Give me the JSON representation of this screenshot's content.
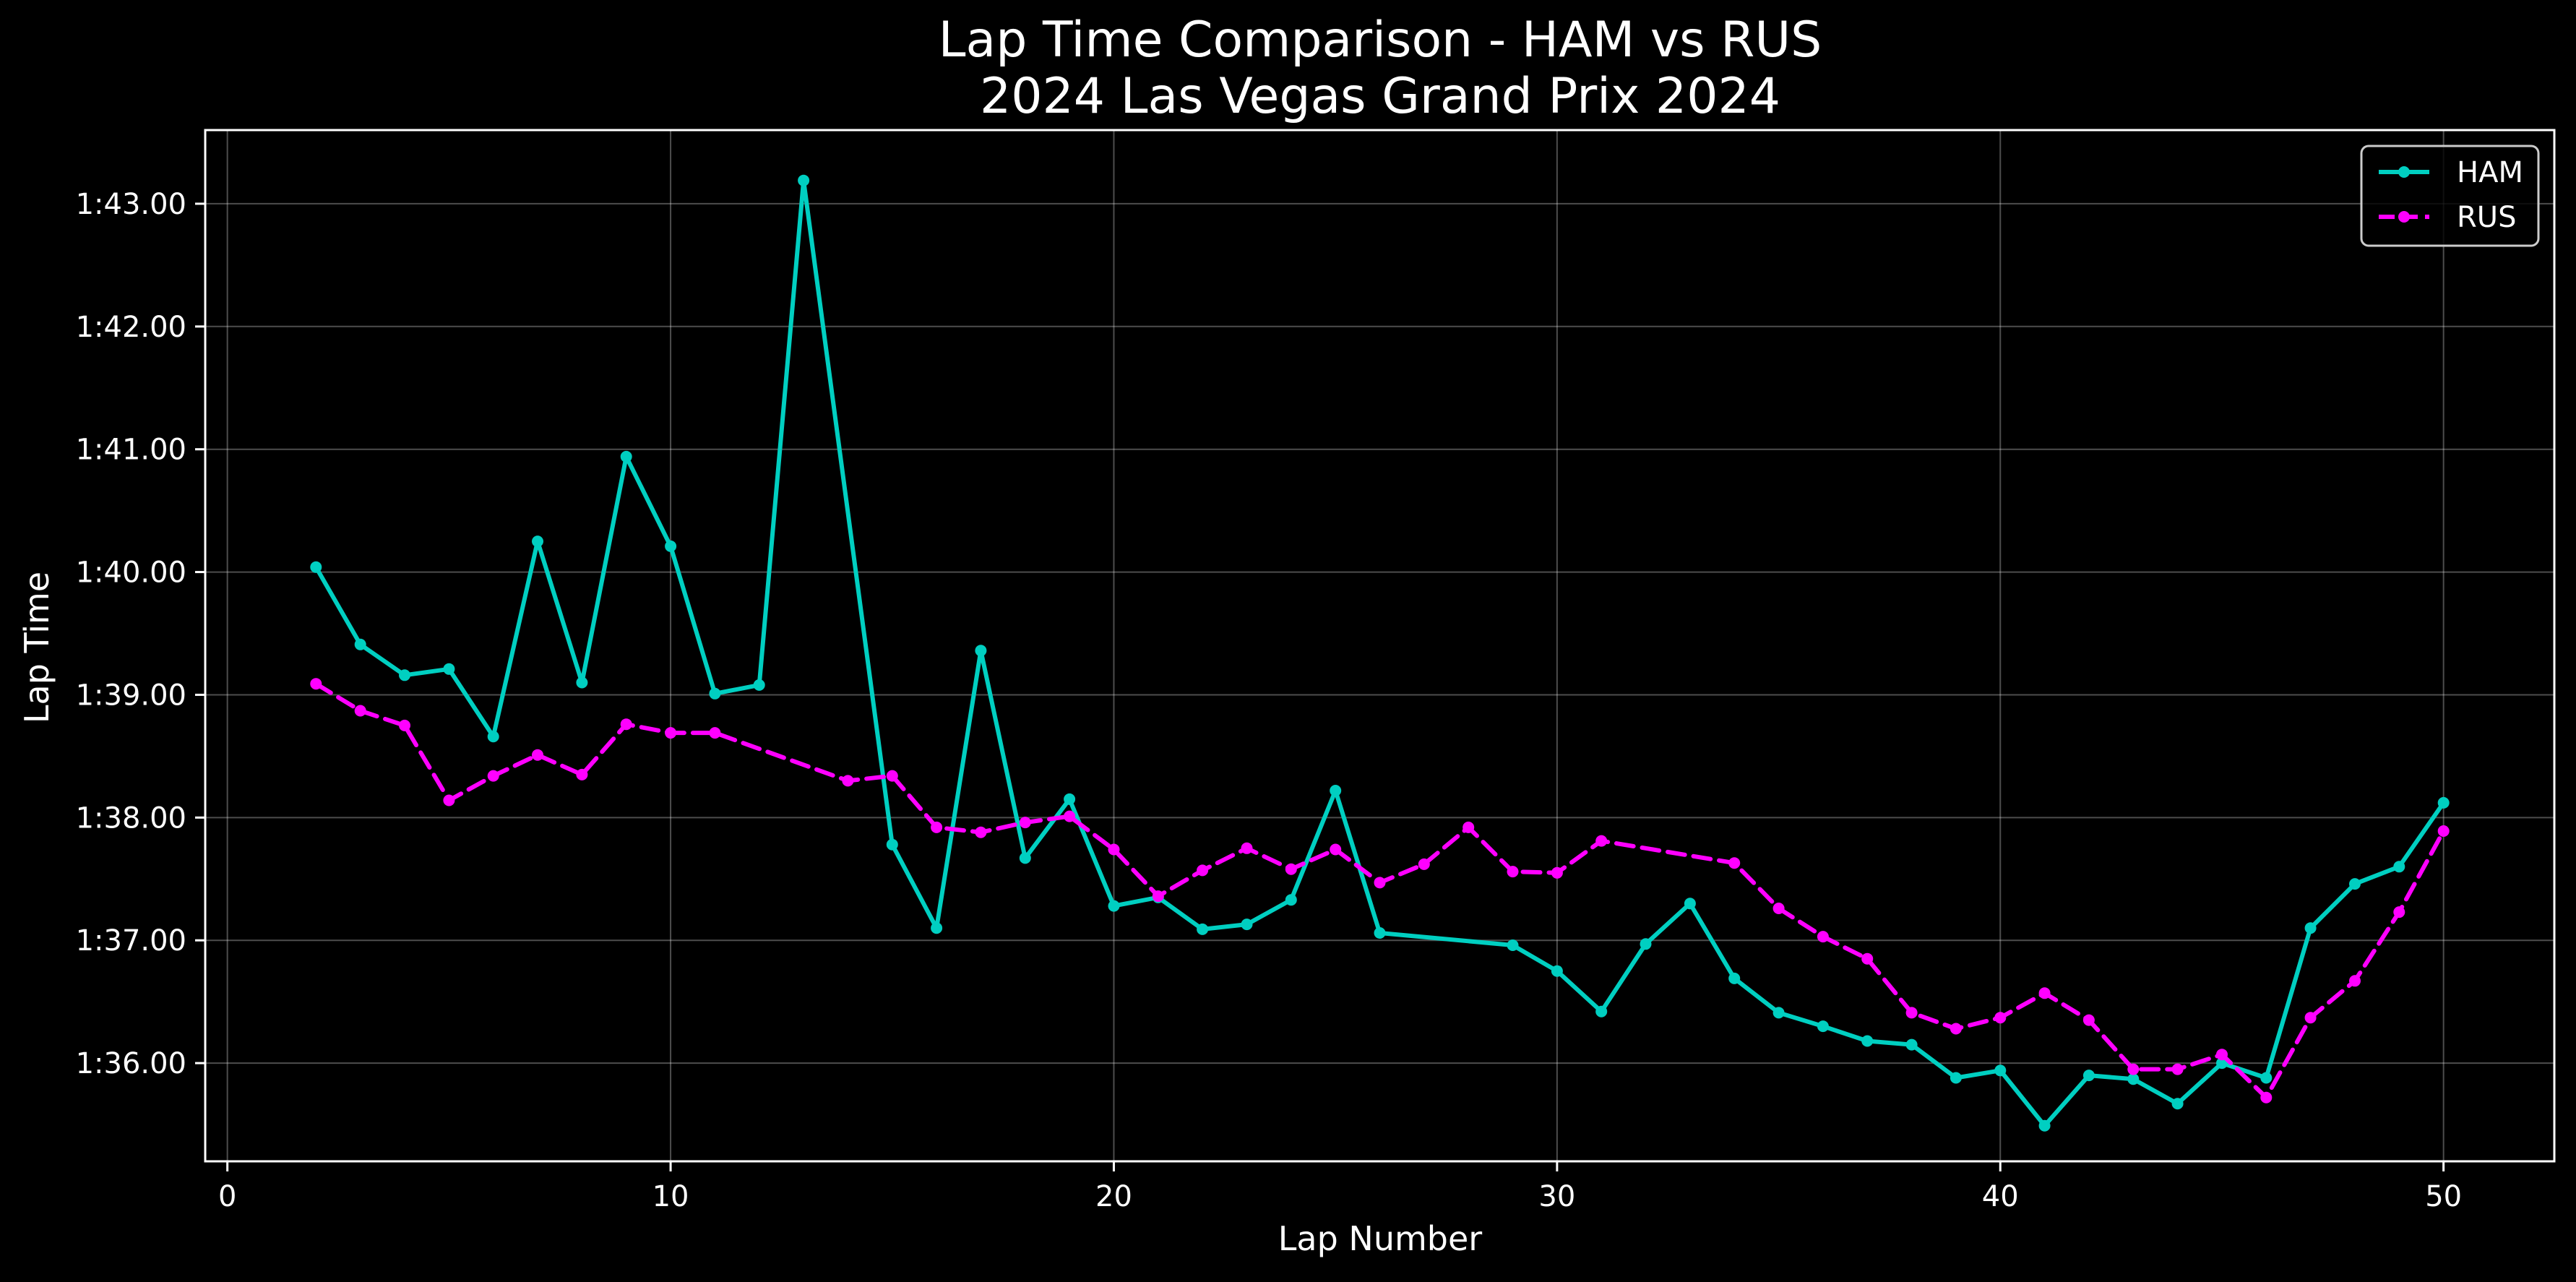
{
  "chart_data": {
    "type": "line",
    "title": "Lap Time Comparison - HAM vs RUS",
    "subtitle": "2024 Las Vegas Grand Prix 2024",
    "xlabel": "Lap Number",
    "ylabel": "Lap Time",
    "xlim": [
      -0.5,
      52.5
    ],
    "ylim": [
      95.2,
      103.6
    ],
    "x_ticks": [
      0,
      10,
      20,
      30,
      40,
      50
    ],
    "y_ticks": [
      {
        "value": 96,
        "label": "1:36.00"
      },
      {
        "value": 97,
        "label": "1:37.00"
      },
      {
        "value": 98,
        "label": "1:38.00"
      },
      {
        "value": 99,
        "label": "1:39.00"
      },
      {
        "value": 100,
        "label": "1:40.00"
      },
      {
        "value": 101,
        "label": "1:41.00"
      },
      {
        "value": 102,
        "label": "1:42.00"
      },
      {
        "value": 103,
        "label": "1:43.00"
      }
    ],
    "grid": true,
    "legend_position": "top-right",
    "background": "#000000",
    "foreground": "#ffffff",
    "series": [
      {
        "name": "HAM",
        "color": "#00CFC1",
        "line_style": "solid",
        "points": [
          [
            2,
            100.04
          ],
          [
            3,
            99.41
          ],
          [
            4,
            99.16
          ],
          [
            5,
            99.21
          ],
          [
            6,
            98.66
          ],
          [
            7,
            100.25
          ],
          [
            8,
            99.1
          ],
          [
            9,
            100.94
          ],
          [
            10,
            100.21
          ],
          [
            11,
            99.01
          ],
          [
            12,
            99.08
          ],
          [
            13,
            103.19
          ],
          [
            15,
            97.78
          ],
          [
            16,
            97.1
          ],
          [
            17,
            99.36
          ],
          [
            18,
            97.67
          ],
          [
            19,
            98.15
          ],
          [
            20,
            97.28
          ],
          [
            21,
            97.35
          ],
          [
            22,
            97.09
          ],
          [
            23,
            97.13
          ],
          [
            24,
            97.33
          ],
          [
            25,
            98.22
          ],
          [
            26,
            97.06
          ],
          [
            29,
            96.96
          ],
          [
            30,
            96.75
          ],
          [
            31,
            96.42
          ],
          [
            32,
            96.97
          ],
          [
            33,
            97.3
          ],
          [
            34,
            96.69
          ],
          [
            35,
            96.41
          ],
          [
            36,
            96.3
          ],
          [
            37,
            96.18
          ],
          [
            38,
            96.15
          ],
          [
            39,
            95.88
          ],
          [
            40,
            95.94
          ],
          [
            41,
            95.49
          ],
          [
            42,
            95.9
          ],
          [
            43,
            95.87
          ],
          [
            44,
            95.67
          ],
          [
            45,
            96.0
          ],
          [
            46,
            95.88
          ],
          [
            47,
            97.1
          ],
          [
            48,
            97.46
          ],
          [
            49,
            97.6
          ],
          [
            50,
            98.12
          ]
        ]
      },
      {
        "name": "RUS",
        "color": "#FF00FF",
        "line_style": "dashed",
        "points": [
          [
            2,
            99.09
          ],
          [
            3,
            98.87
          ],
          [
            4,
            98.75
          ],
          [
            5,
            98.14
          ],
          [
            6,
            98.34
          ],
          [
            7,
            98.51
          ],
          [
            8,
            98.35
          ],
          [
            9,
            98.76
          ],
          [
            10,
            98.69
          ],
          [
            11,
            98.69
          ],
          [
            14,
            98.3
          ],
          [
            15,
            98.34
          ],
          [
            16,
            97.92
          ],
          [
            17,
            97.88
          ],
          [
            18,
            97.96
          ],
          [
            19,
            98.01
          ],
          [
            20,
            97.74
          ],
          [
            21,
            97.36
          ],
          [
            22,
            97.57
          ],
          [
            23,
            97.75
          ],
          [
            24,
            97.58
          ],
          [
            25,
            97.74
          ],
          [
            26,
            97.47
          ],
          [
            27,
            97.62
          ],
          [
            28,
            97.92
          ],
          [
            29,
            97.56
          ],
          [
            30,
            97.55
          ],
          [
            31,
            97.81
          ],
          [
            34,
            97.63
          ],
          [
            35,
            97.26
          ],
          [
            36,
            97.03
          ],
          [
            37,
            96.85
          ],
          [
            38,
            96.41
          ],
          [
            39,
            96.28
          ],
          [
            40,
            96.37
          ],
          [
            41,
            96.57
          ],
          [
            42,
            96.35
          ],
          [
            43,
            95.95
          ],
          [
            44,
            95.95
          ],
          [
            45,
            96.07
          ],
          [
            46,
            95.72
          ],
          [
            47,
            96.37
          ],
          [
            48,
            96.67
          ],
          [
            49,
            97.23
          ],
          [
            50,
            97.89
          ]
        ]
      }
    ]
  }
}
